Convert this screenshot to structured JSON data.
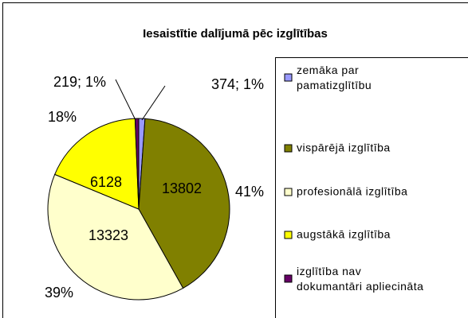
{
  "chart_data": {
    "type": "pie",
    "title": "Iesaistītie dalījumā pēc izglītības",
    "categories": [
      "zemāka par pamatizglītību",
      "vispārējā izglītība",
      "profesionālā izglītība",
      "augstākā izglītība",
      "izglītība nav dokumantāri apliecināta"
    ],
    "values": [
      374,
      13802,
      13323,
      6128,
      219
    ],
    "value_labels": [
      "374; 1%",
      "13802",
      "13323",
      "6128",
      "219; 1%"
    ],
    "percent_labels": {
      "1": "41%",
      "2": "39%",
      "3": "18%"
    },
    "colors": [
      "#9999ff",
      "#808000",
      "#ffffcc",
      "#ffff00",
      "#660066"
    ],
    "legend": "right"
  }
}
